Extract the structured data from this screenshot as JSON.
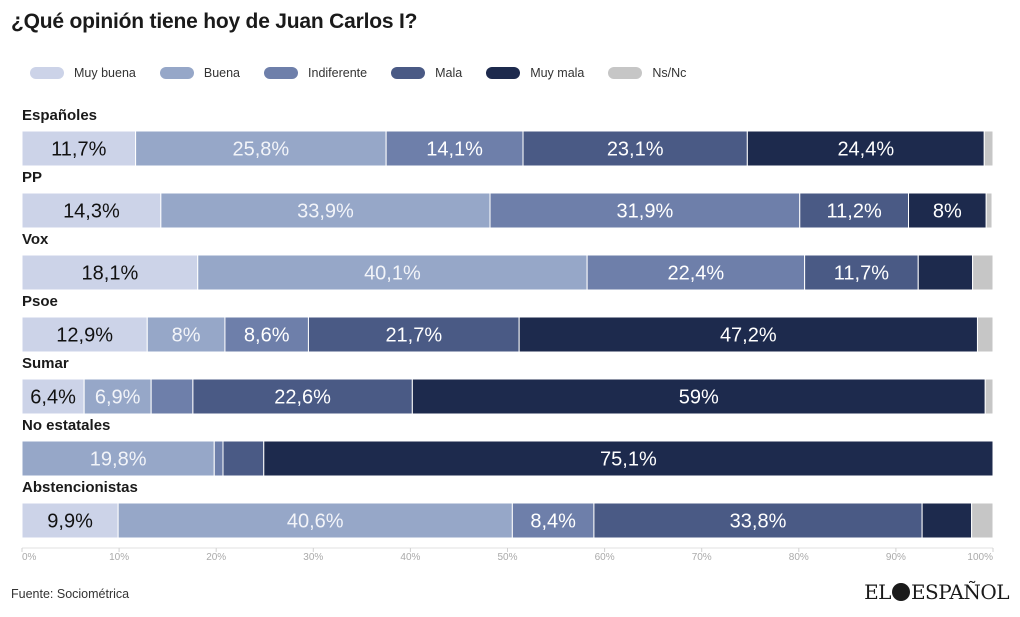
{
  "title": "¿Qué opinión tiene hoy de Juan Carlos I?",
  "source": "Fuente: Sociométrica",
  "logo": {
    "left": "EL",
    "right": "ESPAÑOL"
  },
  "chart_data": {
    "type": "bar",
    "orientation": "horizontal",
    "stacked": true,
    "xlim": [
      0,
      100
    ],
    "x_ticks": [
      "0%",
      "10%",
      "20%",
      "30%",
      "40%",
      "50%",
      "60%",
      "70%",
      "80%",
      "90%",
      "100%"
    ],
    "legend_position": "top",
    "categories": [
      "Españoles",
      "PP",
      "Vox",
      "Psoe",
      "Sumar",
      "No estatales",
      "Abstencionistas"
    ],
    "series": [
      {
        "name": "Muy buena",
        "color": "#ccd3e8",
        "label_color": "#111111",
        "values": [
          11.7,
          14.3,
          18.1,
          12.9,
          6.4,
          0,
          9.9
        ],
        "labels": [
          "11,7%",
          "14,3%",
          "18,1%",
          "12,9%",
          "6,4%",
          "",
          "9,9%"
        ]
      },
      {
        "name": "Buena",
        "color": "#96a7c8",
        "label_color": "#f2f4f9",
        "values": [
          25.8,
          33.9,
          40.1,
          8,
          6.9,
          19.8,
          40.6
        ],
        "labels": [
          "25,8%",
          "33,9%",
          "40,1%",
          "8%",
          "6,9%",
          "19,8%",
          "40,6%"
        ]
      },
      {
        "name": "Indiferente",
        "color": "#6e7faa",
        "label_color": "#ffffff",
        "values": [
          14.1,
          31.9,
          22.4,
          8.6,
          4.3,
          0.9,
          8.4
        ],
        "labels": [
          "14,1%",
          "31,9%",
          "22,4%",
          "8,6%",
          "",
          "",
          "8,4%"
        ]
      },
      {
        "name": "Mala",
        "color": "#4a5a85",
        "label_color": "#ffffff",
        "values": [
          23.1,
          11.2,
          11.7,
          21.7,
          22.6,
          4.2,
          33.8
        ],
        "labels": [
          "23,1%",
          "11,2%",
          "11,7%",
          "21,7%",
          "22,6%",
          "",
          "33,8%"
        ]
      },
      {
        "name": "Muy mala",
        "color": "#1d2a4d",
        "label_color": "#ffffff",
        "values": [
          24.4,
          8,
          5.6,
          47.2,
          59,
          75.1,
          5.1
        ],
        "labels": [
          "24,4%",
          "8%",
          "",
          "47,2%",
          "59%",
          "75,1%",
          ""
        ]
      },
      {
        "name": "Ns/Nc",
        "color": "#c6c6c6",
        "label_color": "#333333",
        "values": [
          0.9,
          0.6,
          2.1,
          1.6,
          0.8,
          0,
          2.2
        ],
        "labels": [
          "",
          "",
          "",
          "",
          "",
          "",
          ""
        ]
      }
    ]
  }
}
